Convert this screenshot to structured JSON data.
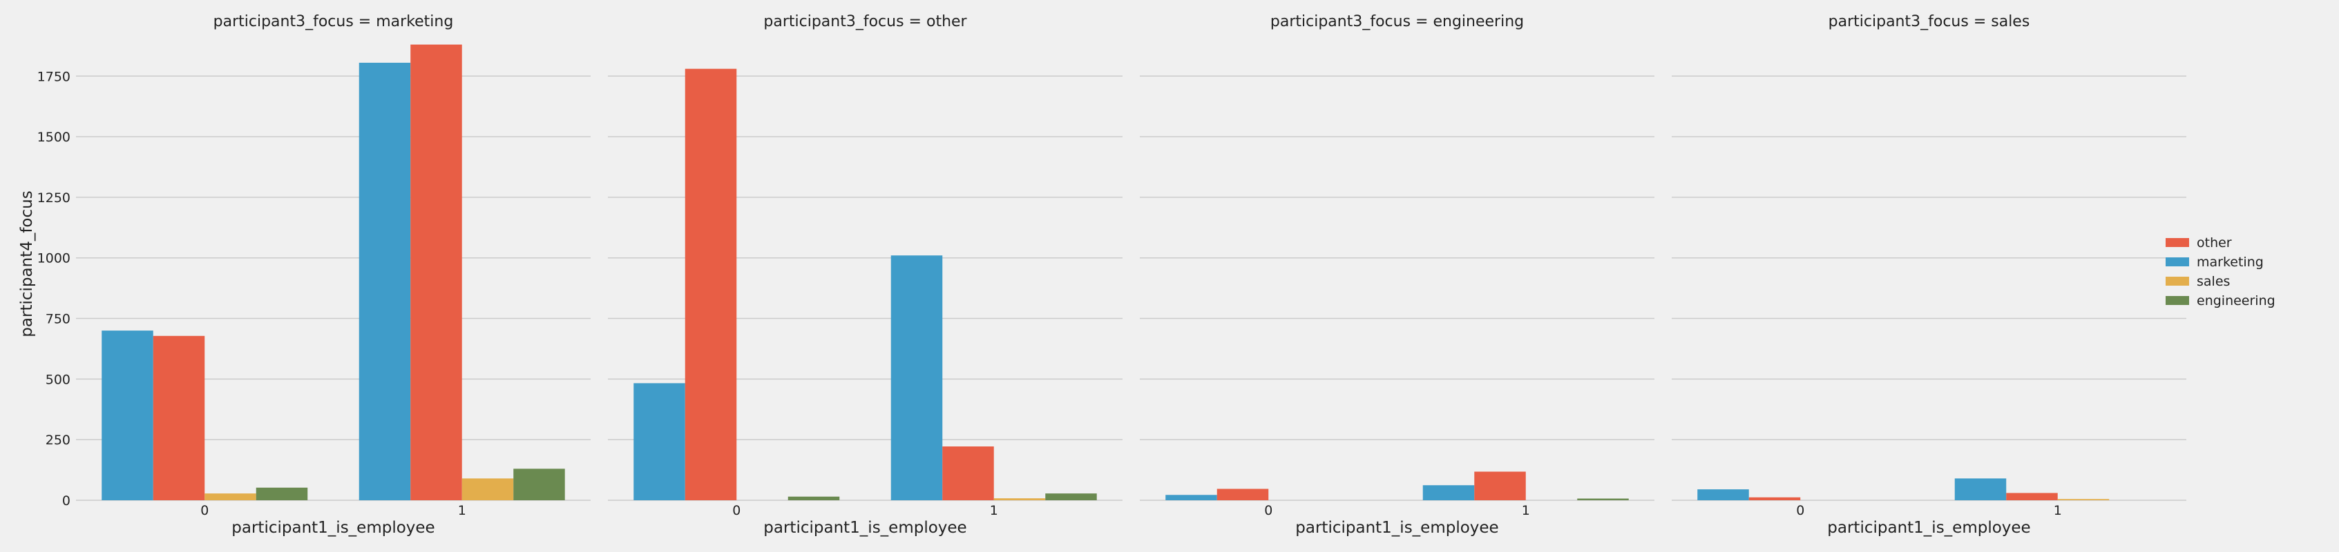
{
  "chart_data": {
    "type": "bar",
    "ylabel": "participant4_focus",
    "ylim": [
      0,
      1950
    ],
    "yticks": [
      0,
      250,
      500,
      750,
      1000,
      1250,
      1500,
      1750
    ],
    "grid": true,
    "legend": {
      "placement": "right",
      "entries": [
        "other",
        "marketing",
        "sales",
        "engineering"
      ]
    },
    "hue_order": [
      "marketing",
      "other",
      "sales",
      "engineering"
    ],
    "colors": {
      "marketing": "#3f9cc9",
      "other": "#e85e45",
      "sales": "#e3ae4c",
      "engineering": "#6a8a50"
    },
    "facets": [
      {
        "title": "participant3_focus = marketing",
        "xlabel": "participant1_is_employee",
        "categories": [
          "0",
          "1"
        ],
        "series": [
          {
            "name": "marketing",
            "values": [
              700,
              1805
            ]
          },
          {
            "name": "other",
            "values": [
              678,
              1880
            ]
          },
          {
            "name": "sales",
            "values": [
              28,
              90
            ]
          },
          {
            "name": "engineering",
            "values": [
              52,
              130
            ]
          }
        ]
      },
      {
        "title": "participant3_focus = other",
        "xlabel": "participant1_is_employee",
        "categories": [
          "0",
          "1"
        ],
        "series": [
          {
            "name": "marketing",
            "values": [
              483,
              1010
            ]
          },
          {
            "name": "other",
            "values": [
              1780,
              222
            ]
          },
          {
            "name": "sales",
            "values": [
              0,
              8
            ]
          },
          {
            "name": "engineering",
            "values": [
              15,
              28
            ]
          }
        ]
      },
      {
        "title": "participant3_focus = engineering",
        "xlabel": "participant1_is_employee",
        "categories": [
          "0",
          "1"
        ],
        "series": [
          {
            "name": "marketing",
            "values": [
              22,
              62
            ]
          },
          {
            "name": "other",
            "values": [
              47,
              118
            ]
          },
          {
            "name": "sales",
            "values": [
              0,
              0
            ]
          },
          {
            "name": "engineering",
            "values": [
              0,
              7
            ]
          }
        ]
      },
      {
        "title": "participant3_focus = sales",
        "xlabel": "participant1_is_employee",
        "categories": [
          "0",
          "1"
        ],
        "series": [
          {
            "name": "marketing",
            "values": [
              45,
              90
            ]
          },
          {
            "name": "other",
            "values": [
              12,
              30
            ]
          },
          {
            "name": "sales",
            "values": [
              0,
              5
            ]
          },
          {
            "name": "engineering",
            "values": [
              0,
              0
            ]
          }
        ]
      }
    ]
  }
}
